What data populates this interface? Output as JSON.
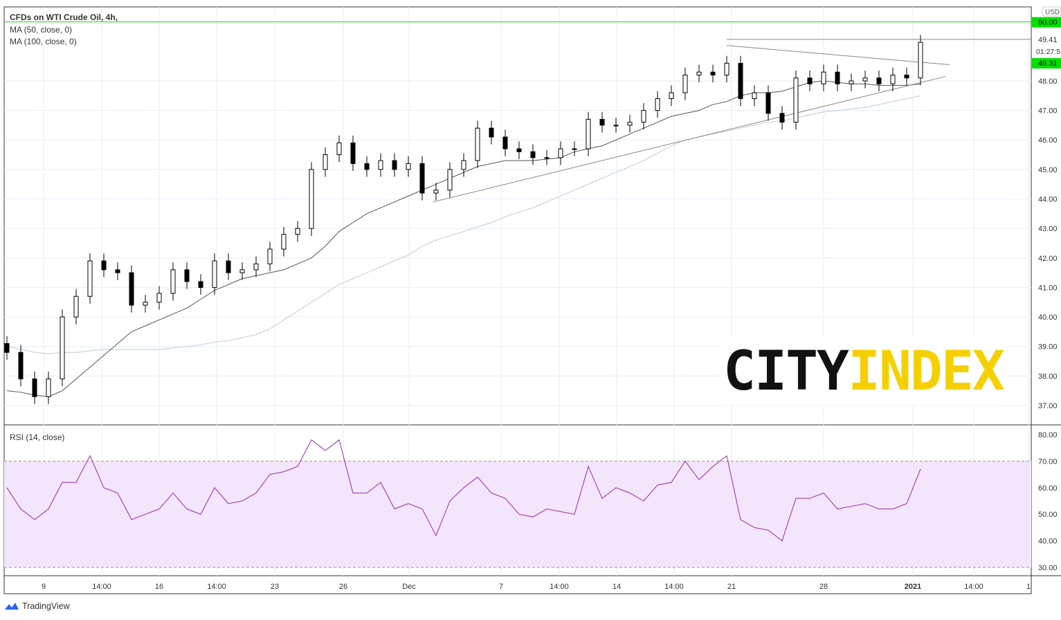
{
  "header": {
    "title": "CFDs on WTI Crude Oil, 4h,",
    "ma50": "MA (50, close, 0)",
    "ma100": "MA (100, close, 0)",
    "rsi": "RSI (14, close)"
  },
  "price_axis": {
    "currency": "USD",
    "current_price": "49.31",
    "countdown": "01:27:5",
    "level_label": "49.41",
    "top_label": "50.00"
  },
  "branding": {
    "tradingview": "TradingView",
    "watermark_a": "CITY",
    "watermark_b": "INDEX"
  },
  "colors": {
    "candle": "#000000",
    "ma50": "#555555",
    "ma100": "#c9d3e0",
    "rsi": "#9c27b0",
    "rsi_band": "#f3e5fb",
    "level": "#00e000",
    "watermark_b": "#f5d000"
  },
  "chart_data": [
    {
      "type": "candlestick",
      "title": "CFDs on WTI Crude Oil, 4h,",
      "ylim": [
        36.6,
        50.6
      ],
      "yticks": [
        37,
        38,
        39,
        40,
        41,
        42,
        43,
        44,
        45,
        46,
        47,
        48
      ],
      "xticks": [
        "9",
        "14:00",
        "16",
        "14:00",
        "23",
        "26",
        "Dec",
        "7",
        "14:00",
        "14",
        "14:00",
        "21",
        "28",
        "2021",
        "14:00",
        "1"
      ],
      "closes": [
        38.8,
        37.9,
        37.3,
        37.9,
        40.0,
        40.7,
        41.9,
        41.6,
        41.5,
        40.4,
        40.5,
        40.8,
        41.6,
        41.2,
        41.0,
        41.9,
        41.5,
        41.6,
        41.8,
        42.3,
        42.8,
        43.0,
        45.0,
        45.5,
        45.9,
        45.2,
        45.0,
        45.3,
        45.0,
        45.2,
        44.2,
        44.3,
        45.0,
        45.3,
        46.4,
        46.1,
        45.7,
        45.6,
        45.4,
        45.4,
        45.7,
        45.7,
        46.7,
        46.5,
        46.5,
        46.6,
        47.0,
        47.4,
        47.6,
        48.2,
        48.3,
        48.2,
        48.6,
        47.4,
        47.6,
        46.9,
        46.6,
        48.1,
        47.9,
        48.3,
        47.9,
        48.0,
        48.1,
        47.9,
        48.2,
        48.1,
        49.31
      ],
      "series": [
        {
          "name": "MA (50, close, 0)",
          "values": [
            37.5,
            37.45,
            37.35,
            37.3,
            37.5,
            37.9,
            38.3,
            38.7,
            39.1,
            39.5,
            39.7,
            39.9,
            40.1,
            40.3,
            40.6,
            40.9,
            41.1,
            41.3,
            41.4,
            41.5,
            41.6,
            41.8,
            42.0,
            42.4,
            42.9,
            43.2,
            43.5,
            43.7,
            43.9,
            44.1,
            44.3,
            44.5,
            44.7,
            44.9,
            45.1,
            45.2,
            45.3,
            45.3,
            45.3,
            45.35,
            45.4,
            45.6,
            45.7,
            45.8,
            46.0,
            46.2,
            46.4,
            46.6,
            46.8,
            46.9,
            47.0,
            47.2,
            47.3,
            47.5,
            47.6,
            47.6,
            47.65,
            47.8,
            47.95,
            48.0,
            47.95,
            47.9,
            47.9,
            47.85,
            47.85,
            47.85,
            47.9
          ]
        },
        {
          "name": "MA (100, close, 0)",
          "values": [
            39.0,
            38.9,
            38.8,
            38.75,
            38.8,
            38.8,
            38.85,
            38.9,
            38.9,
            38.9,
            38.9,
            38.9,
            38.95,
            39.0,
            39.05,
            39.15,
            39.2,
            39.3,
            39.4,
            39.6,
            39.9,
            40.2,
            40.5,
            40.8,
            41.1,
            41.3,
            41.5,
            41.7,
            41.9,
            42.1,
            42.4,
            42.6,
            42.75,
            42.9,
            43.05,
            43.2,
            43.4,
            43.55,
            43.7,
            43.9,
            44.1,
            44.3,
            44.5,
            44.7,
            44.9,
            45.1,
            45.3,
            45.55,
            45.8,
            46.0,
            46.1,
            46.2,
            46.3,
            46.4,
            46.5,
            46.6,
            46.65,
            46.75,
            46.85,
            46.95,
            47.0,
            47.05,
            47.1,
            47.2,
            47.3,
            47.4,
            47.5
          ]
        }
      ],
      "levels": [
        50.0,
        49.41
      ],
      "trendlines": [
        {
          "from": [
            52,
            49.2
          ],
          "to": [
            68.1,
            48.55
          ]
        },
        {
          "from": [
            30.8,
            43.9
          ],
          "to": [
            67.8,
            48.15
          ]
        }
      ]
    },
    {
      "type": "line",
      "title": "RSI (14, close)",
      "ylim": [
        28,
        82
      ],
      "yticks": [
        30,
        40,
        50,
        60,
        70,
        80
      ],
      "band": [
        30,
        70
      ],
      "values": [
        60,
        52,
        48,
        52,
        62,
        62,
        72,
        60,
        58,
        48,
        50,
        52,
        58,
        52,
        50,
        60,
        54,
        55,
        58,
        65,
        66,
        68,
        78,
        74,
        78,
        58,
        58,
        62,
        52,
        54,
        52,
        42,
        55,
        60,
        64,
        58,
        56,
        50,
        49,
        52,
        51,
        50,
        68,
        56,
        60,
        58,
        55,
        61,
        62,
        70,
        63,
        68,
        72,
        48,
        45,
        44,
        40,
        56,
        56,
        58,
        52,
        53,
        54,
        52,
        52,
        54,
        67
      ]
    }
  ]
}
